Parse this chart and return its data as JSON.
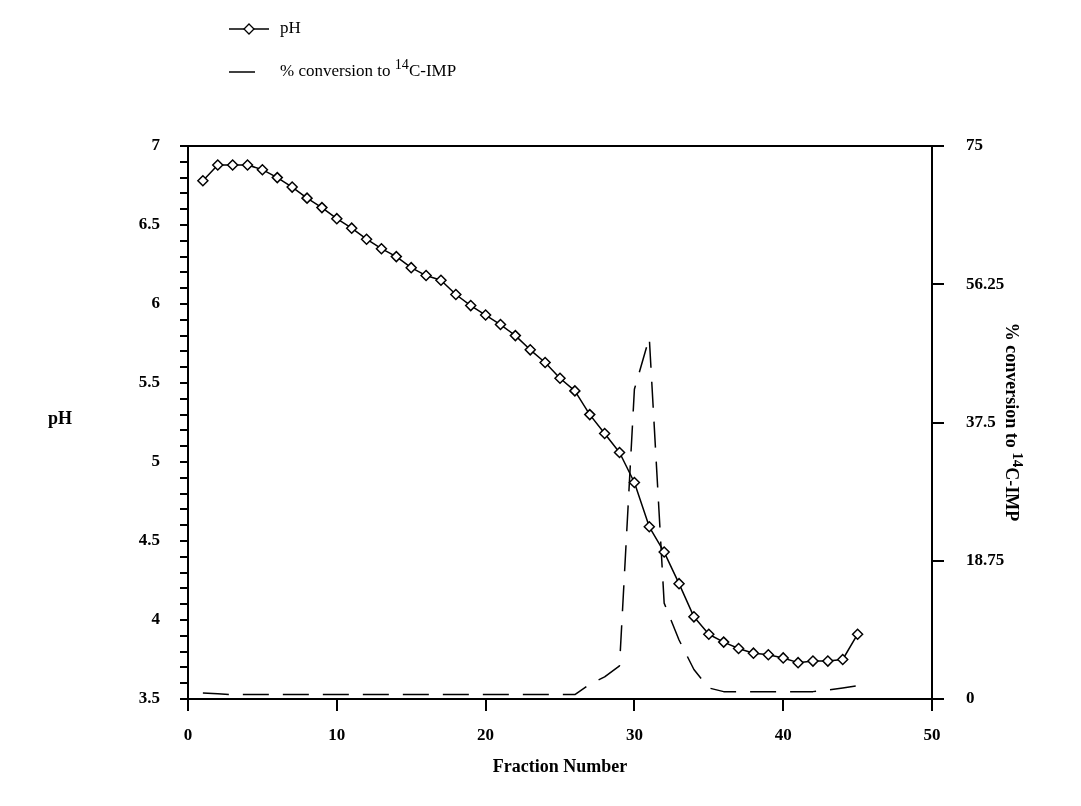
{
  "chart_data": {
    "type": "line",
    "xlabel": "Fraction Number",
    "ylabel": "pH",
    "y2label": "% conversion to $^{14}$C-IMP",
    "x": [
      1,
      2,
      3,
      4,
      5,
      6,
      7,
      8,
      9,
      10,
      11,
      12,
      13,
      14,
      15,
      16,
      17,
      18,
      19,
      20,
      21,
      22,
      23,
      24,
      25,
      26,
      27,
      28,
      29,
      30,
      31,
      32,
      33,
      34,
      35,
      36,
      37,
      38,
      39,
      40,
      41,
      42,
      43,
      44,
      45
    ],
    "series": [
      {
        "name": "pH",
        "color": "#000000",
        "marker": "diamond",
        "line_style": "solid",
        "values": [
          6.78,
          6.88,
          6.88,
          6.88,
          6.85,
          6.8,
          6.74,
          6.67,
          6.61,
          6.54,
          6.48,
          6.41,
          6.35,
          6.3,
          6.23,
          6.18,
          6.15,
          6.06,
          5.99,
          5.93,
          5.87,
          5.8,
          5.71,
          5.63,
          5.53,
          5.45,
          5.3,
          5.18,
          5.06,
          4.87,
          4.59,
          4.43,
          4.23,
          4.02,
          3.91,
          3.86,
          3.82,
          3.79,
          3.78,
          3.76,
          3.73,
          3.74,
          3.74,
          3.75,
          3.91
        ]
      },
      {
        "name": "% conversion to $^{14}$C-IMP",
        "color": "#000000",
        "marker": "none",
        "line_style": "dashed",
        "axis": "y2",
        "values": [
          0.8,
          0.7,
          0.6,
          0.6,
          0.6,
          0.6,
          0.6,
          0.6,
          0.6,
          0.6,
          0.6,
          0.6,
          0.6,
          0.6,
          0.6,
          0.6,
          0.6,
          0.6,
          0.6,
          0.6,
          0.6,
          0.6,
          0.6,
          0.6,
          0.6,
          0.6,
          2,
          3,
          4.5,
          42,
          49,
          13,
          8,
          4,
          1.5,
          1,
          1,
          1,
          1,
          1,
          1,
          1,
          1.2,
          1.5,
          1.8
        ]
      }
    ],
    "xlim": [
      0,
      50
    ],
    "xticks": [
      0,
      10,
      20,
      30,
      40,
      50
    ],
    "ylim": [
      3.5,
      7
    ],
    "yticks": [
      3.5,
      {
        "value": 3.6,
        "label": null
      },
      {
        "value": 3.7,
        "label": null
      },
      {
        "value": 3.8,
        "label": null
      },
      {
        "value": 3.9,
        "label": null
      },
      4,
      {
        "value": 4.1,
        "label": null
      },
      {
        "value": 4.2,
        "label": null
      },
      {
        "value": 4.3,
        "label": null
      },
      {
        "value": 4.4,
        "label": null
      },
      4.5,
      {
        "value": 4.6,
        "label": null
      },
      {
        "value": 4.7,
        "label": null
      },
      {
        "value": 4.8,
        "label": null
      },
      {
        "value": 4.9,
        "label": null
      },
      5,
      {
        "value": 5.1,
        "label": null
      },
      {
        "value": 5.2,
        "label": null
      },
      {
        "value": 5.3,
        "label": null
      },
      {
        "value": 5.4,
        "label": null
      },
      5.5,
      {
        "value": 5.6,
        "label": null
      },
      {
        "value": 5.7,
        "label": null
      },
      {
        "value": 5.8,
        "label": null
      },
      {
        "value": 5.9,
        "label": null
      },
      6,
      {
        "value": 6.1,
        "label": null
      },
      {
        "value": 6.2,
        "label": null
      },
      {
        "value": 6.3,
        "label": null
      },
      {
        "value": 6.4,
        "label": null
      },
      6.5,
      {
        "value": 6.6,
        "label": null
      },
      {
        "value": 6.7,
        "label": null
      },
      {
        "value": 6.8,
        "label": null
      },
      {
        "value": 6.9,
        "label": null
      },
      7
    ],
    "y2lim": [
      0,
      75
    ],
    "y2ticks": [
      0,
      18.75,
      37.5,
      56.25,
      75
    ],
    "grid": false,
    "legend": "top left"
  }
}
